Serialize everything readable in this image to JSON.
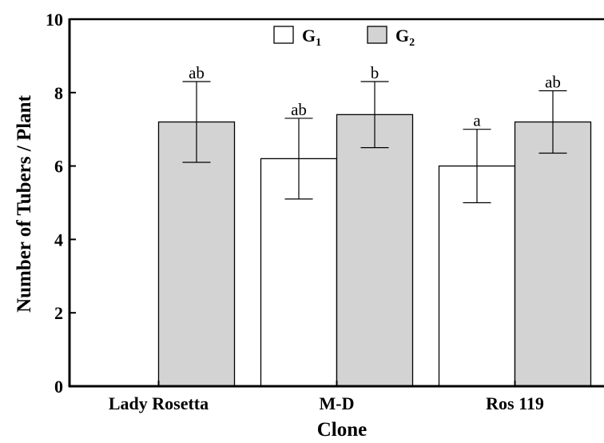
{
  "chart_data": {
    "type": "bar",
    "categories": [
      "Lady Rosetta",
      "M-D",
      "Ros 119"
    ],
    "series": [
      {
        "name": "G1",
        "name_base": "G",
        "name_sub": "1",
        "color": "#ffffff",
        "values": [
          null,
          6.2,
          6.0
        ],
        "errors": [
          null,
          1.1,
          1.0
        ],
        "labels": [
          "",
          "ab",
          "a"
        ]
      },
      {
        "name": "G2",
        "name_base": "G",
        "name_sub": "2",
        "color": "#d3d3d3",
        "values": [
          7.2,
          7.4,
          7.2
        ],
        "errors": [
          1.1,
          0.9,
          0.85
        ],
        "labels": [
          "ab",
          "b",
          "ab"
        ]
      }
    ],
    "xlabel": "Clone",
    "ylabel": "Number of Tubers / Plant",
    "ylim": [
      0,
      10
    ],
    "yticks": [
      0,
      2,
      4,
      6,
      8,
      10
    ],
    "legend_position": "top-center",
    "grid": false
  }
}
